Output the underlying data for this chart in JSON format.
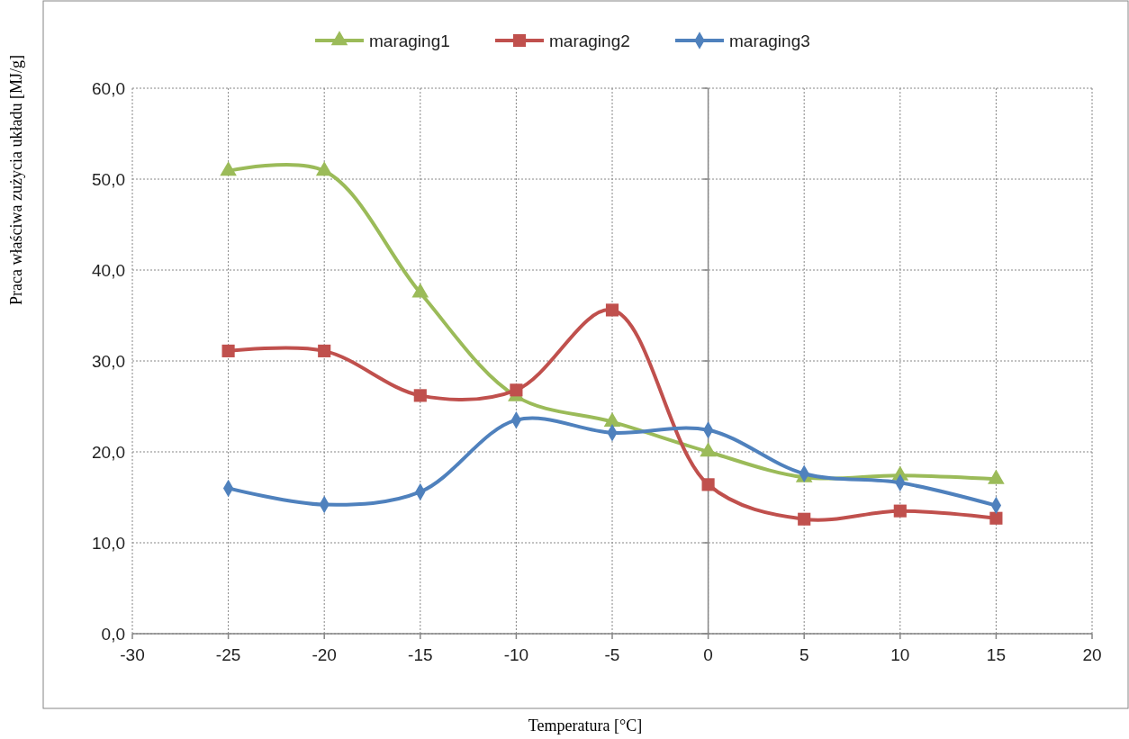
{
  "chart_data": {
    "type": "line",
    "xlabel": "Temperatura [°C]",
    "ylabel": "Praca właściwa zużycia układu [MJ/g]",
    "x": [
      -25,
      -20,
      -15,
      -10,
      -5,
      0,
      5,
      10,
      15
    ],
    "series": [
      {
        "name": "maraging1",
        "color": "#9bbb59",
        "marker": "triangle",
        "values": [
          50.9,
          50.9,
          37.5,
          26.1,
          23.3,
          20.0,
          17.2,
          17.4,
          17.0
        ]
      },
      {
        "name": "maraging2",
        "color": "#c0504d",
        "marker": "square",
        "values": [
          31.1,
          31.1,
          26.2,
          26.8,
          35.6,
          16.4,
          12.6,
          13.5,
          12.7
        ]
      },
      {
        "name": "maraging3",
        "color": "#4f81bd",
        "marker": "diamond",
        "values": [
          16.0,
          14.2,
          15.6,
          23.5,
          22.1,
          22.4,
          17.6,
          16.6,
          14.1
        ]
      }
    ],
    "xlim": [
      -30,
      20
    ],
    "xticks": [
      -30,
      -25,
      -20,
      -15,
      -10,
      -5,
      0,
      5,
      10,
      15,
      20
    ],
    "ylim": [
      0,
      60
    ],
    "yticks": [
      {
        "value": 0,
        "label": "0,0"
      },
      {
        "value": 10,
        "label": "10,0"
      },
      {
        "value": 20,
        "label": "20,0"
      },
      {
        "value": 30,
        "label": "30,0"
      },
      {
        "value": 40,
        "label": "40,0"
      },
      {
        "value": 50,
        "label": "50,0"
      },
      {
        "value": 60,
        "label": "60,0"
      }
    ],
    "grid": true,
    "legend": "top",
    "line_style": "solid"
  }
}
